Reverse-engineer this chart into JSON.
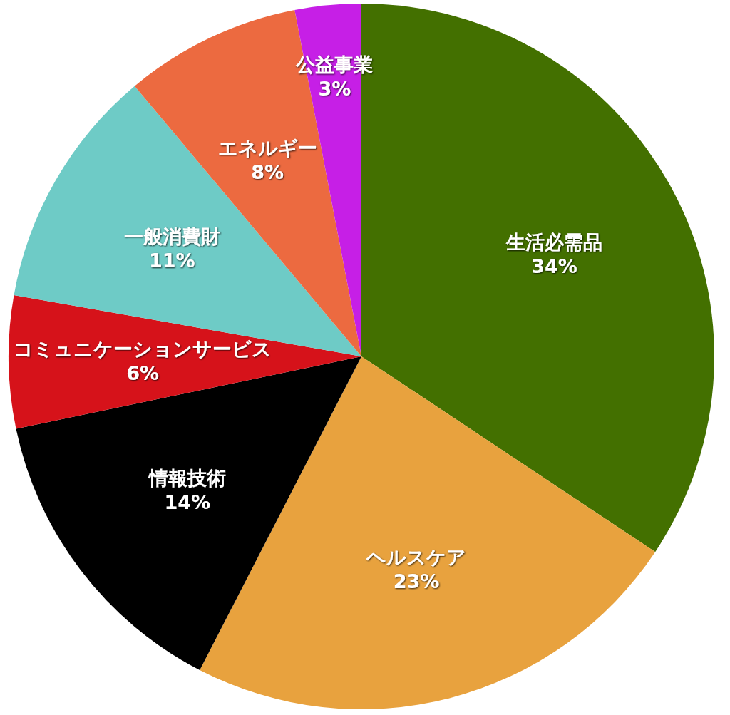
{
  "chart_data": {
    "type": "pie",
    "categories": [
      "生活必需品",
      "ヘルスケア",
      "情報技術",
      "コミュニケーションサービス",
      "一般消費財",
      "エネルギー",
      "公益事業"
    ],
    "values": [
      34,
      23,
      14,
      6,
      11,
      8,
      3
    ],
    "colors": [
      "#437000",
      "#e8a23e",
      "#000000",
      "#d6121a",
      "#6ecbc6",
      "#ec6a40",
      "#c61fe6"
    ],
    "value_labels": [
      "34%",
      "23%",
      "14%",
      "6%",
      "11%",
      "8%",
      "3%"
    ]
  }
}
